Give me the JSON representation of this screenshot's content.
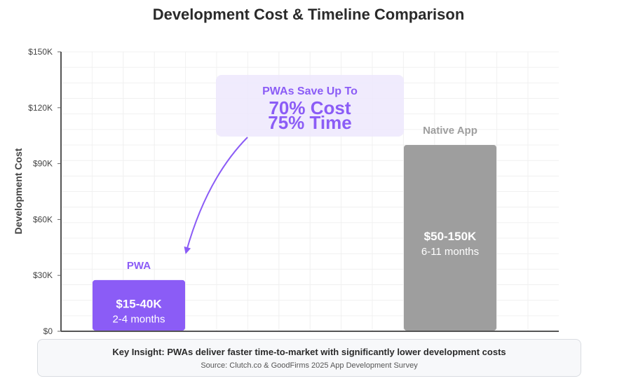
{
  "chart_data": {
    "type": "bar",
    "title": "Development Cost & Timeline Comparison",
    "ylabel": "Development Cost",
    "ylim": [
      0,
      150000
    ],
    "yticks": [
      0,
      30000,
      60000,
      90000,
      120000,
      150000
    ],
    "ytick_labels": [
      "$0",
      "$30K",
      "$60K",
      "$90K",
      "$120K",
      "$150K"
    ],
    "grid": true,
    "categories": [
      "PWA",
      "Native App"
    ],
    "values": [
      27500,
      100000
    ],
    "cost_labels": [
      "$15-40K",
      "$50-150K"
    ],
    "time_labels": [
      "2-4 months",
      "6-11 months"
    ],
    "colors": [
      "#8b5cf6",
      "#9e9e9e"
    ],
    "annotation": {
      "line1": "PWAs Save Up To",
      "line2": "70% Cost",
      "line3": "75% Time",
      "color": "#8b5cf6"
    }
  },
  "insight": {
    "main": "Key Insight: PWAs deliver faster time-to-market with significantly lower development costs",
    "source": "Source: Clutch.co & GoodFirms 2025 App Development Survey"
  }
}
